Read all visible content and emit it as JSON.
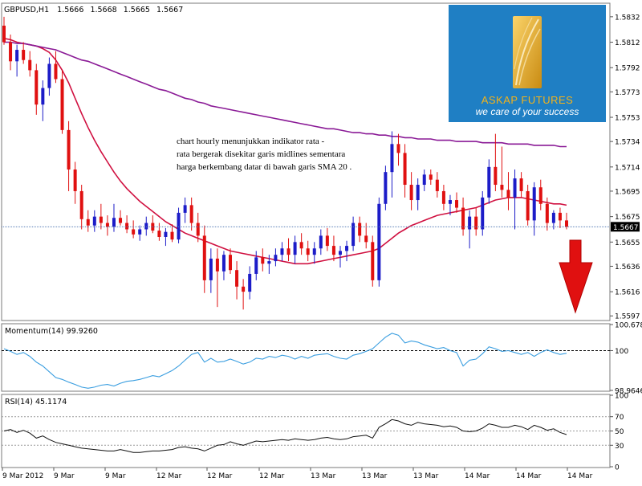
{
  "header": {
    "symbol": "GBPUSD,H1",
    "open": "1.5666",
    "high": "1.5668",
    "low": "1.5665",
    "close": "1.5667"
  },
  "annotation": {
    "line1": "chart hourly menunjukkan indikator rata -",
    "line2": "rata bergerak disekitar garis midlines sementara",
    "line3": "harga berkembang datar di bawah garis SMA 20 ."
  },
  "logo": {
    "name": "ASKAP FUTURES",
    "tagline": "we care of your success"
  },
  "colors": {
    "bull": "#1c1cc8",
    "bear": "#e01010",
    "sma": "#d01040",
    "long_ma": "#8a1a96",
    "momentum": "#3a9ee0",
    "rsi": "#111111",
    "price_line": "#5a7fb8",
    "arrow": "#e01010",
    "logo_bg": "#1f7fc4",
    "logo_name": "#f3b21a"
  },
  "chart_data": [
    {
      "type": "candlestick",
      "panel": "price",
      "title": "GBPUSD,H1",
      "current_price": 1.5667,
      "ylim": [
        1.5594,
        1.5842
      ],
      "y_ticks": [
        "1.5832",
        "1.5812",
        "1.5792",
        "1.5773",
        "1.5753",
        "1.5734",
        "1.5714",
        "1.5695",
        "1.5675",
        "1.5655",
        "1.5636",
        "1.5616",
        "1.5597"
      ],
      "x_ticks": [
        "9 Mar 2012",
        "9 Mar",
        "9 Mar",
        "12 Mar",
        "12 Mar",
        "12 Mar",
        "13 Mar",
        "13 Mar",
        "13 Mar",
        "14 Mar",
        "14 Mar",
        "14 Mar"
      ],
      "trend_signal": "down",
      "ohlc": [
        [
          1.5825,
          1.5832,
          1.581,
          1.5812
        ],
        [
          1.5812,
          1.5818,
          1.579,
          1.5797
        ],
        [
          1.5797,
          1.581,
          1.5785,
          1.5806
        ],
        [
          1.5806,
          1.5812,
          1.5795,
          1.5798
        ],
        [
          1.5798,
          1.5805,
          1.5785,
          1.579
        ],
        [
          1.579,
          1.5795,
          1.5755,
          1.5763
        ],
        [
          1.5763,
          1.5782,
          1.575,
          1.5776
        ],
        [
          1.5776,
          1.58,
          1.577,
          1.5795
        ],
        [
          1.5795,
          1.5805,
          1.578,
          1.5783
        ],
        [
          1.5783,
          1.579,
          1.574,
          1.5743
        ],
        [
          1.5743,
          1.575,
          1.5695,
          1.5712
        ],
        [
          1.5712,
          1.5718,
          1.5685,
          1.5695
        ],
        [
          1.5695,
          1.57,
          1.5665,
          1.5673
        ],
        [
          1.5673,
          1.568,
          1.5663,
          1.5668
        ],
        [
          1.5668,
          1.568,
          1.5663,
          1.5675
        ],
        [
          1.5675,
          1.5685,
          1.5665,
          1.567
        ],
        [
          1.567,
          1.5676,
          1.566,
          1.5667
        ],
        [
          1.5667,
          1.5685,
          1.5663,
          1.5674
        ],
        [
          1.5674,
          1.568,
          1.5668,
          1.567
        ],
        [
          1.567,
          1.5676,
          1.5662,
          1.5665
        ],
        [
          1.5665,
          1.5672,
          1.5658,
          1.5661
        ],
        [
          1.5661,
          1.5668,
          1.5656,
          1.5665
        ],
        [
          1.5665,
          1.5675,
          1.566,
          1.567
        ],
        [
          1.567,
          1.5676,
          1.5662,
          1.5664
        ],
        [
          1.5664,
          1.567,
          1.5656,
          1.5659
        ],
        [
          1.5659,
          1.5666,
          1.5652,
          1.5663
        ],
        [
          1.5663,
          1.5669,
          1.5655,
          1.5657
        ],
        [
          1.5657,
          1.5682,
          1.5654,
          1.5678
        ],
        [
          1.5678,
          1.569,
          1.567,
          1.5684
        ],
        [
          1.5684,
          1.569,
          1.5664,
          1.567
        ],
        [
          1.567,
          1.5678,
          1.5655,
          1.566
        ],
        [
          1.566,
          1.5668,
          1.5615,
          1.5625
        ],
        [
          1.5625,
          1.565,
          1.5615,
          1.5642
        ],
        [
          1.5642,
          1.565,
          1.5604,
          1.5632
        ],
        [
          1.5632,
          1.5648,
          1.5625,
          1.5645
        ],
        [
          1.5645,
          1.565,
          1.563,
          1.5633
        ],
        [
          1.5633,
          1.564,
          1.561,
          1.562
        ],
        [
          1.562,
          1.5626,
          1.5602,
          1.5616
        ],
        [
          1.5616,
          1.5636,
          1.561,
          1.563
        ],
        [
          1.563,
          1.5648,
          1.5625,
          1.5643
        ],
        [
          1.5643,
          1.565,
          1.5632,
          1.5638
        ],
        [
          1.5638,
          1.5645,
          1.563,
          1.564
        ],
        [
          1.564,
          1.565,
          1.5636,
          1.5645
        ],
        [
          1.5645,
          1.5655,
          1.564,
          1.565
        ],
        [
          1.565,
          1.5658,
          1.564,
          1.5645
        ],
        [
          1.5645,
          1.566,
          1.5638,
          1.5655
        ],
        [
          1.5655,
          1.5662,
          1.5645,
          1.565
        ],
        [
          1.565,
          1.5656,
          1.564,
          1.5645
        ],
        [
          1.5645,
          1.5655,
          1.5638,
          1.565
        ],
        [
          1.565,
          1.5665,
          1.5645,
          1.566
        ],
        [
          1.566,
          1.5666,
          1.5648,
          1.5652
        ],
        [
          1.5652,
          1.566,
          1.564,
          1.5645
        ],
        [
          1.5645,
          1.5652,
          1.5635,
          1.5648
        ],
        [
          1.5648,
          1.5656,
          1.564,
          1.5652
        ],
        [
          1.5652,
          1.5675,
          1.5648,
          1.567
        ],
        [
          1.567,
          1.5675,
          1.5655,
          1.566
        ],
        [
          1.566,
          1.567,
          1.565,
          1.5655
        ],
        [
          1.5655,
          1.566,
          1.562,
          1.5625
        ],
        [
          1.5625,
          1.569,
          1.562,
          1.5685
        ],
        [
          1.5685,
          1.5715,
          1.568,
          1.571
        ],
        [
          1.571,
          1.5742,
          1.569,
          1.5732
        ],
        [
          1.5732,
          1.574,
          1.5715,
          1.5725
        ],
        [
          1.5725,
          1.5732,
          1.569,
          1.57
        ],
        [
          1.57,
          1.571,
          1.568,
          1.5688
        ],
        [
          1.5688,
          1.5705,
          1.568,
          1.57
        ],
        [
          1.57,
          1.5712,
          1.5695,
          1.5708
        ],
        [
          1.5708,
          1.5712,
          1.57,
          1.5704
        ],
        [
          1.5704,
          1.571,
          1.569,
          1.5695
        ],
        [
          1.5695,
          1.57,
          1.568,
          1.5685
        ],
        [
          1.5685,
          1.5692,
          1.5676,
          1.5688
        ],
        [
          1.5688,
          1.5694,
          1.5678,
          1.5682
        ],
        [
          1.5682,
          1.569,
          1.566,
          1.5665
        ],
        [
          1.5665,
          1.568,
          1.565,
          1.5675
        ],
        [
          1.5675,
          1.5682,
          1.566,
          1.5665
        ],
        [
          1.5665,
          1.5695,
          1.566,
          1.569
        ],
        [
          1.569,
          1.572,
          1.5685,
          1.5714
        ],
        [
          1.5714,
          1.574,
          1.5695,
          1.57
        ],
        [
          1.57,
          1.573,
          1.569,
          1.5696
        ],
        [
          1.5696,
          1.571,
          1.568,
          1.569
        ],
        [
          1.569,
          1.5712,
          1.5665,
          1.5705
        ],
        [
          1.5705,
          1.571,
          1.569,
          1.5695
        ],
        [
          1.5695,
          1.57,
          1.5668,
          1.5672
        ],
        [
          1.5672,
          1.5702,
          1.566,
          1.5698
        ],
        [
          1.5698,
          1.5704,
          1.568,
          1.5685
        ],
        [
          1.5685,
          1.569,
          1.5664,
          1.567
        ],
        [
          1.567,
          1.568,
          1.5665,
          1.5678
        ],
        [
          1.5678,
          1.5682,
          1.5666,
          1.5672
        ],
        [
          1.5672,
          1.5678,
          1.5665,
          1.5667
        ]
      ],
      "series": [
        {
          "name": "SMA 20",
          "values": [
            1.5815,
            1.5814,
            1.5812,
            1.5811,
            1.581,
            1.5809,
            1.5807,
            1.5804,
            1.5798,
            1.579,
            1.578,
            1.5768,
            1.5756,
            1.5745,
            1.5735,
            1.5726,
            1.5718,
            1.571,
            1.5703,
            1.5697,
            1.5692,
            1.5687,
            1.5683,
            1.5679,
            1.5675,
            1.5671,
            1.5668,
            1.5665,
            1.5662,
            1.566,
            1.5658,
            1.5656,
            1.5654,
            1.5652,
            1.565,
            1.5648,
            1.5647,
            1.5646,
            1.5645,
            1.5644,
            1.5643,
            1.5642,
            1.5641,
            1.564,
            1.5639,
            1.5638,
            1.5638,
            1.5638,
            1.5639,
            1.564,
            1.5641,
            1.5642,
            1.5643,
            1.5644,
            1.5645,
            1.5646,
            1.5647,
            1.5648,
            1.565,
            1.5654,
            1.5658,
            1.5662,
            1.5665,
            1.5668,
            1.567,
            1.5672,
            1.5674,
            1.5676,
            1.5677,
            1.5678,
            1.5679,
            1.568,
            1.5681,
            1.5682,
            1.5684,
            1.5686,
            1.5688,
            1.5689,
            1.569,
            1.569,
            1.569,
            1.5689,
            1.5688,
            1.5687,
            1.5686,
            1.5685,
            1.5685,
            1.5684
          ]
        },
        {
          "name": "long MA",
          "values": [
            1.5812,
            1.5812,
            1.5811,
            1.5811,
            1.581,
            1.5809,
            1.5808,
            1.5807,
            1.5806,
            1.5804,
            1.5802,
            1.58,
            1.5798,
            1.5797,
            1.5795,
            1.5793,
            1.5791,
            1.5789,
            1.5787,
            1.5785,
            1.5783,
            1.5781,
            1.5779,
            1.5777,
            1.5775,
            1.5774,
            1.5772,
            1.577,
            1.5768,
            1.5767,
            1.5765,
            1.5764,
            1.5762,
            1.5761,
            1.576,
            1.5759,
            1.5758,
            1.5757,
            1.5756,
            1.5755,
            1.5754,
            1.5753,
            1.5752,
            1.5751,
            1.575,
            1.5749,
            1.5748,
            1.5747,
            1.5746,
            1.5745,
            1.5744,
            1.5744,
            1.5743,
            1.5742,
            1.5741,
            1.5741,
            1.574,
            1.574,
            1.5739,
            1.5739,
            1.5738,
            1.5738,
            1.5737,
            1.5737,
            1.5736,
            1.5736,
            1.5736,
            1.5735,
            1.5735,
            1.5735,
            1.5734,
            1.5734,
            1.5734,
            1.5734,
            1.5733,
            1.5733,
            1.5733,
            1.5733,
            1.5732,
            1.5732,
            1.5732,
            1.5732,
            1.5731,
            1.5731,
            1.5731,
            1.5731,
            1.573,
            1.573
          ]
        }
      ]
    },
    {
      "type": "line",
      "panel": "momentum",
      "title": "Momentum(14) 99.9260",
      "ylim": [
        98.9646,
        100.6783
      ],
      "y_ticks": [
        "100.6783",
        "100",
        "98.9646"
      ],
      "reference_level": 100,
      "series": [
        {
          "name": "Momentum(14)",
          "values": [
            100.05,
            99.98,
            99.9,
            99.95,
            99.85,
            99.7,
            99.6,
            99.45,
            99.3,
            99.25,
            99.18,
            99.12,
            99.05,
            99.02,
            99.05,
            99.1,
            99.12,
            99.08,
            99.15,
            99.2,
            99.22,
            99.25,
            99.3,
            99.35,
            99.32,
            99.4,
            99.48,
            99.6,
            99.75,
            99.9,
            99.95,
            99.7,
            99.8,
            99.7,
            99.72,
            99.78,
            99.72,
            99.65,
            99.7,
            99.8,
            99.78,
            99.85,
            99.82,
            99.88,
            99.85,
            99.78,
            99.85,
            99.8,
            99.88,
            99.9,
            99.92,
            99.85,
            99.8,
            99.78,
            99.88,
            99.92,
            99.98,
            100.05,
            100.2,
            100.35,
            100.45,
            100.4,
            100.2,
            100.25,
            100.22,
            100.15,
            100.1,
            100.05,
            100.08,
            100.0,
            99.95,
            99.6,
            99.75,
            99.78,
            99.92,
            100.1,
            100.05,
            99.98,
            100.0,
            99.95,
            99.9,
            99.95,
            99.85,
            99.95,
            100.02,
            99.95,
            99.9,
            99.93
          ]
        }
      ]
    },
    {
      "type": "line",
      "panel": "rsi",
      "title": "RSI(14) 45.1174",
      "ylim": [
        0,
        100
      ],
      "y_ticks": [
        "100",
        "70",
        "50",
        "30",
        "0"
      ],
      "levels": [
        70,
        50,
        30
      ],
      "series": [
        {
          "name": "RSI(14)",
          "values": [
            50,
            52,
            48,
            51,
            47,
            40,
            43,
            38,
            34,
            32,
            30,
            28,
            26,
            25,
            24,
            23,
            22,
            22,
            24,
            22,
            20,
            20,
            21,
            22,
            22,
            23,
            24,
            27,
            28,
            26,
            25,
            22,
            26,
            30,
            31,
            35,
            32,
            30,
            33,
            36,
            35,
            36,
            37,
            38,
            37,
            39,
            38,
            37,
            38,
            40,
            41,
            39,
            38,
            39,
            42,
            43,
            44,
            40,
            55,
            60,
            66,
            64,
            60,
            58,
            62,
            60,
            59,
            58,
            56,
            57,
            55,
            50,
            49,
            50,
            54,
            60,
            58,
            55,
            55,
            58,
            56,
            52,
            58,
            55,
            51,
            53,
            48,
            45
          ]
        }
      ]
    }
  ]
}
